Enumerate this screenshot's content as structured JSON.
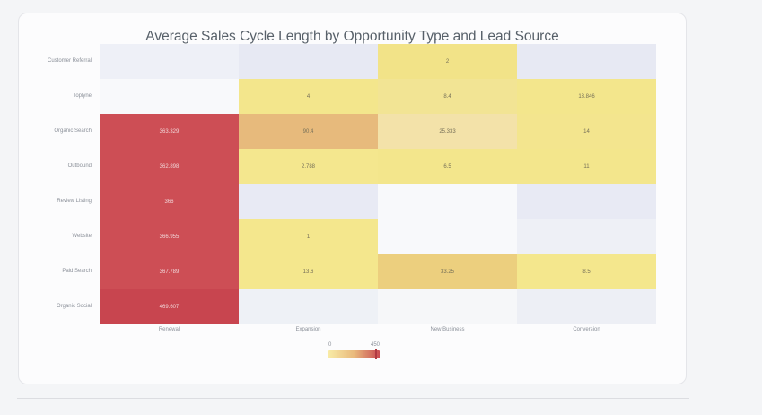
{
  "page": {
    "background": "#f4f5f7"
  },
  "chart_data": {
    "type": "heatmap",
    "title": "Average Sales Cycle Length by Opportunity Type and Lead Source",
    "rows": [
      "Customer Referral",
      "Toplyne",
      "Organic Search",
      "Outbound",
      "Review Listing",
      "Website",
      "Paid Search",
      "Organic Social"
    ],
    "columns": [
      "Renewal",
      "Expansion",
      "New Business",
      "Conversion"
    ],
    "values": [
      [
        null,
        null,
        2,
        null
      ],
      [
        null,
        4,
        8.4,
        13.846
      ],
      [
        363.329,
        90.4,
        25.333,
        14
      ],
      [
        362.898,
        2.788,
        6.5,
        11
      ],
      [
        366,
        null,
        null,
        null
      ],
      [
        366.955,
        1,
        null,
        null
      ],
      [
        367.789,
        13.6,
        33.25,
        8.5
      ],
      [
        469.607,
        null,
        null,
        null
      ]
    ],
    "cell_labels": [
      [
        "",
        "",
        "2",
        ""
      ],
      [
        "",
        "4",
        "8.4",
        "13.846"
      ],
      [
        "363.329",
        "90.4",
        "25.333",
        "14"
      ],
      [
        "362.898",
        "2.788",
        "6.5",
        "11"
      ],
      [
        "366",
        "",
        "",
        ""
      ],
      [
        "366.955",
        "1",
        "",
        ""
      ],
      [
        "367.789",
        "13.6",
        "33.25",
        "8.5"
      ],
      [
        "469.607",
        "",
        "",
        ""
      ]
    ],
    "cell_colors": [
      [
        "#eef0f7",
        "#e7e9f3",
        "#f2e388",
        "#e7e9f3"
      ],
      [
        "#f8f9fb",
        "#f3e68c",
        "#f2e494",
        "#f3e68c"
      ],
      [
        "#cd4e55",
        "#e7ba7c",
        "#f3e2a9",
        "#f3e58e"
      ],
      [
        "#cd4e55",
        "#f4e78e",
        "#f3e68c",
        "#f3e68c"
      ],
      [
        "#cd4e55",
        "#e8eaf4",
        "#f8f9fb",
        "#e8eaf4"
      ],
      [
        "#cd4e55",
        "#f4e78d",
        "#f8f9fb",
        "#eef0f6"
      ],
      [
        "#cd4e55",
        "#f4e78d",
        "#eccf7e",
        "#f4e78d"
      ],
      [
        "#c8454f",
        "#eef1f6",
        "#f6f7f9",
        "#edeff5"
      ]
    ],
    "text_on_dark": "#f1d6d8",
    "text_on_light": "#767058",
    "colorscale": {
      "min": 0,
      "max": 450
    },
    "legend": {
      "min_label": "0",
      "max_label": "450",
      "gradient_stops": [
        "#f8eba6",
        "#e9b97c",
        "#c94c53"
      ],
      "marker_pos": 0.91
    },
    "grid": false,
    "legend_position": "bottom-center"
  }
}
